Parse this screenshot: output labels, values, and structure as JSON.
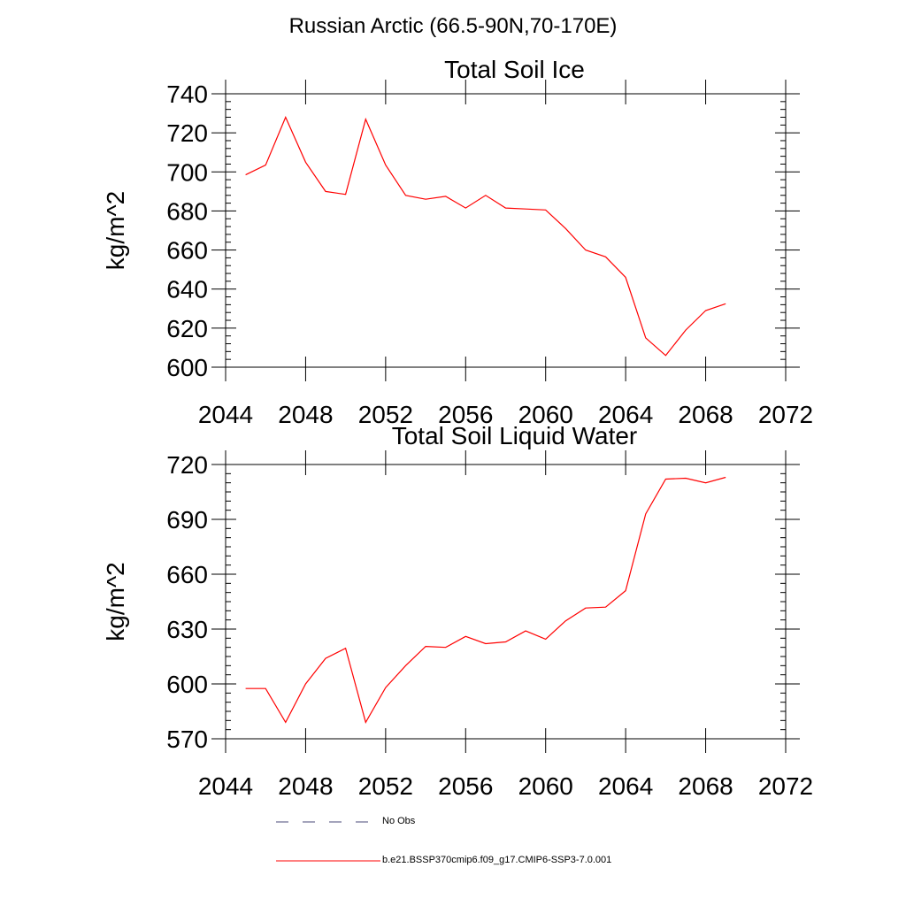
{
  "page": {
    "title": "Russian Arctic (66.5-90N,70-170E)"
  },
  "chart_data": [
    {
      "type": "line",
      "title": "Total Soil Ice",
      "xlabel": "",
      "ylabel": "kg/m^2",
      "xlim": [
        2044,
        2072
      ],
      "ylim": [
        600,
        740
      ],
      "xticks": [
        2044,
        2048,
        2052,
        2056,
        2060,
        2064,
        2068,
        2072
      ],
      "yticks": [
        600,
        620,
        640,
        660,
        680,
        700,
        720,
        740
      ],
      "xtick_labels": [
        "2044",
        "2048",
        "2052",
        "2056",
        "2060",
        "2064",
        "2068",
        "2072"
      ],
      "ytick_labels": [
        "600",
        "620",
        "640",
        "660",
        "680",
        "700",
        "720",
        "740"
      ],
      "grid": false,
      "series": [
        {
          "name": "b.e21.BSSP370cmip6.f09_g17.CMIP6-SSP3-7.0.001",
          "color": "#ff0000",
          "x": [
            2045,
            2046,
            2047,
            2048,
            2049,
            2050,
            2051,
            2052,
            2053,
            2054,
            2055,
            2056,
            2057,
            2058,
            2059,
            2060,
            2061,
            2062,
            2063,
            2064,
            2065,
            2066,
            2067,
            2068,
            2069
          ],
          "y": [
            698.5,
            703.5,
            728,
            705,
            690,
            688.5,
            727,
            703.5,
            688,
            686,
            687.5,
            681.5,
            688,
            681.5,
            681,
            680.5,
            671,
            660,
            656.5,
            646,
            615,
            606,
            619,
            629,
            632.5
          ]
        }
      ]
    },
    {
      "type": "line",
      "title": "Total Soil Liquid Water",
      "xlabel": "",
      "ylabel": "kg/m^2",
      "xlim": [
        2044,
        2072
      ],
      "ylim": [
        570,
        720
      ],
      "xticks": [
        2044,
        2048,
        2052,
        2056,
        2060,
        2064,
        2068,
        2072
      ],
      "yticks": [
        570,
        600,
        630,
        660,
        690,
        720
      ],
      "xtick_labels": [
        "2044",
        "2048",
        "2052",
        "2056",
        "2060",
        "2064",
        "2068",
        "2072"
      ],
      "ytick_labels": [
        "570",
        "600",
        "630",
        "660",
        "690",
        "720"
      ],
      "grid": false,
      "series": [
        {
          "name": "b.e21.BSSP370cmip6.f09_g17.CMIP6-SSP3-7.0.001",
          "color": "#ff0000",
          "x": [
            2045,
            2046,
            2047,
            2048,
            2049,
            2050,
            2051,
            2052,
            2053,
            2054,
            2055,
            2056,
            2057,
            2058,
            2059,
            2060,
            2061,
            2062,
            2063,
            2064,
            2065,
            2066,
            2067,
            2068,
            2069
          ],
          "y": [
            597.5,
            597.5,
            579,
            600,
            614,
            619.5,
            579,
            598,
            610,
            620.5,
            620,
            626,
            622,
            623,
            629,
            624.5,
            634.5,
            641.5,
            642,
            651,
            693,
            712,
            712.5,
            710,
            713
          ]
        }
      ]
    }
  ],
  "legend": {
    "items": [
      {
        "label": "No Obs",
        "style": "dashed",
        "color": "#4a4a7a"
      },
      {
        "label": "b.e21.BSSP370cmip6.f09_g17.CMIP6-SSP3-7.0.001",
        "style": "solid",
        "color": "#ff0000"
      }
    ]
  }
}
